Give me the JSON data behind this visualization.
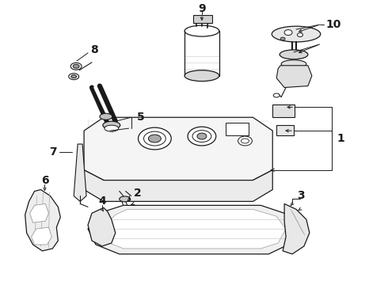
{
  "background_color": "#ffffff",
  "figure_width": 4.9,
  "figure_height": 3.6,
  "dpi": 100,
  "line_color": "#1a1a1a",
  "text_color": "#1a1a1a",
  "label_fontsize": 9,
  "callout_lw": 0.7,
  "part_lw": 0.9,
  "tank_fc": "#f5f5f5",
  "bracket_fc": "#f0f0f0",
  "white_fc": "#ffffff"
}
